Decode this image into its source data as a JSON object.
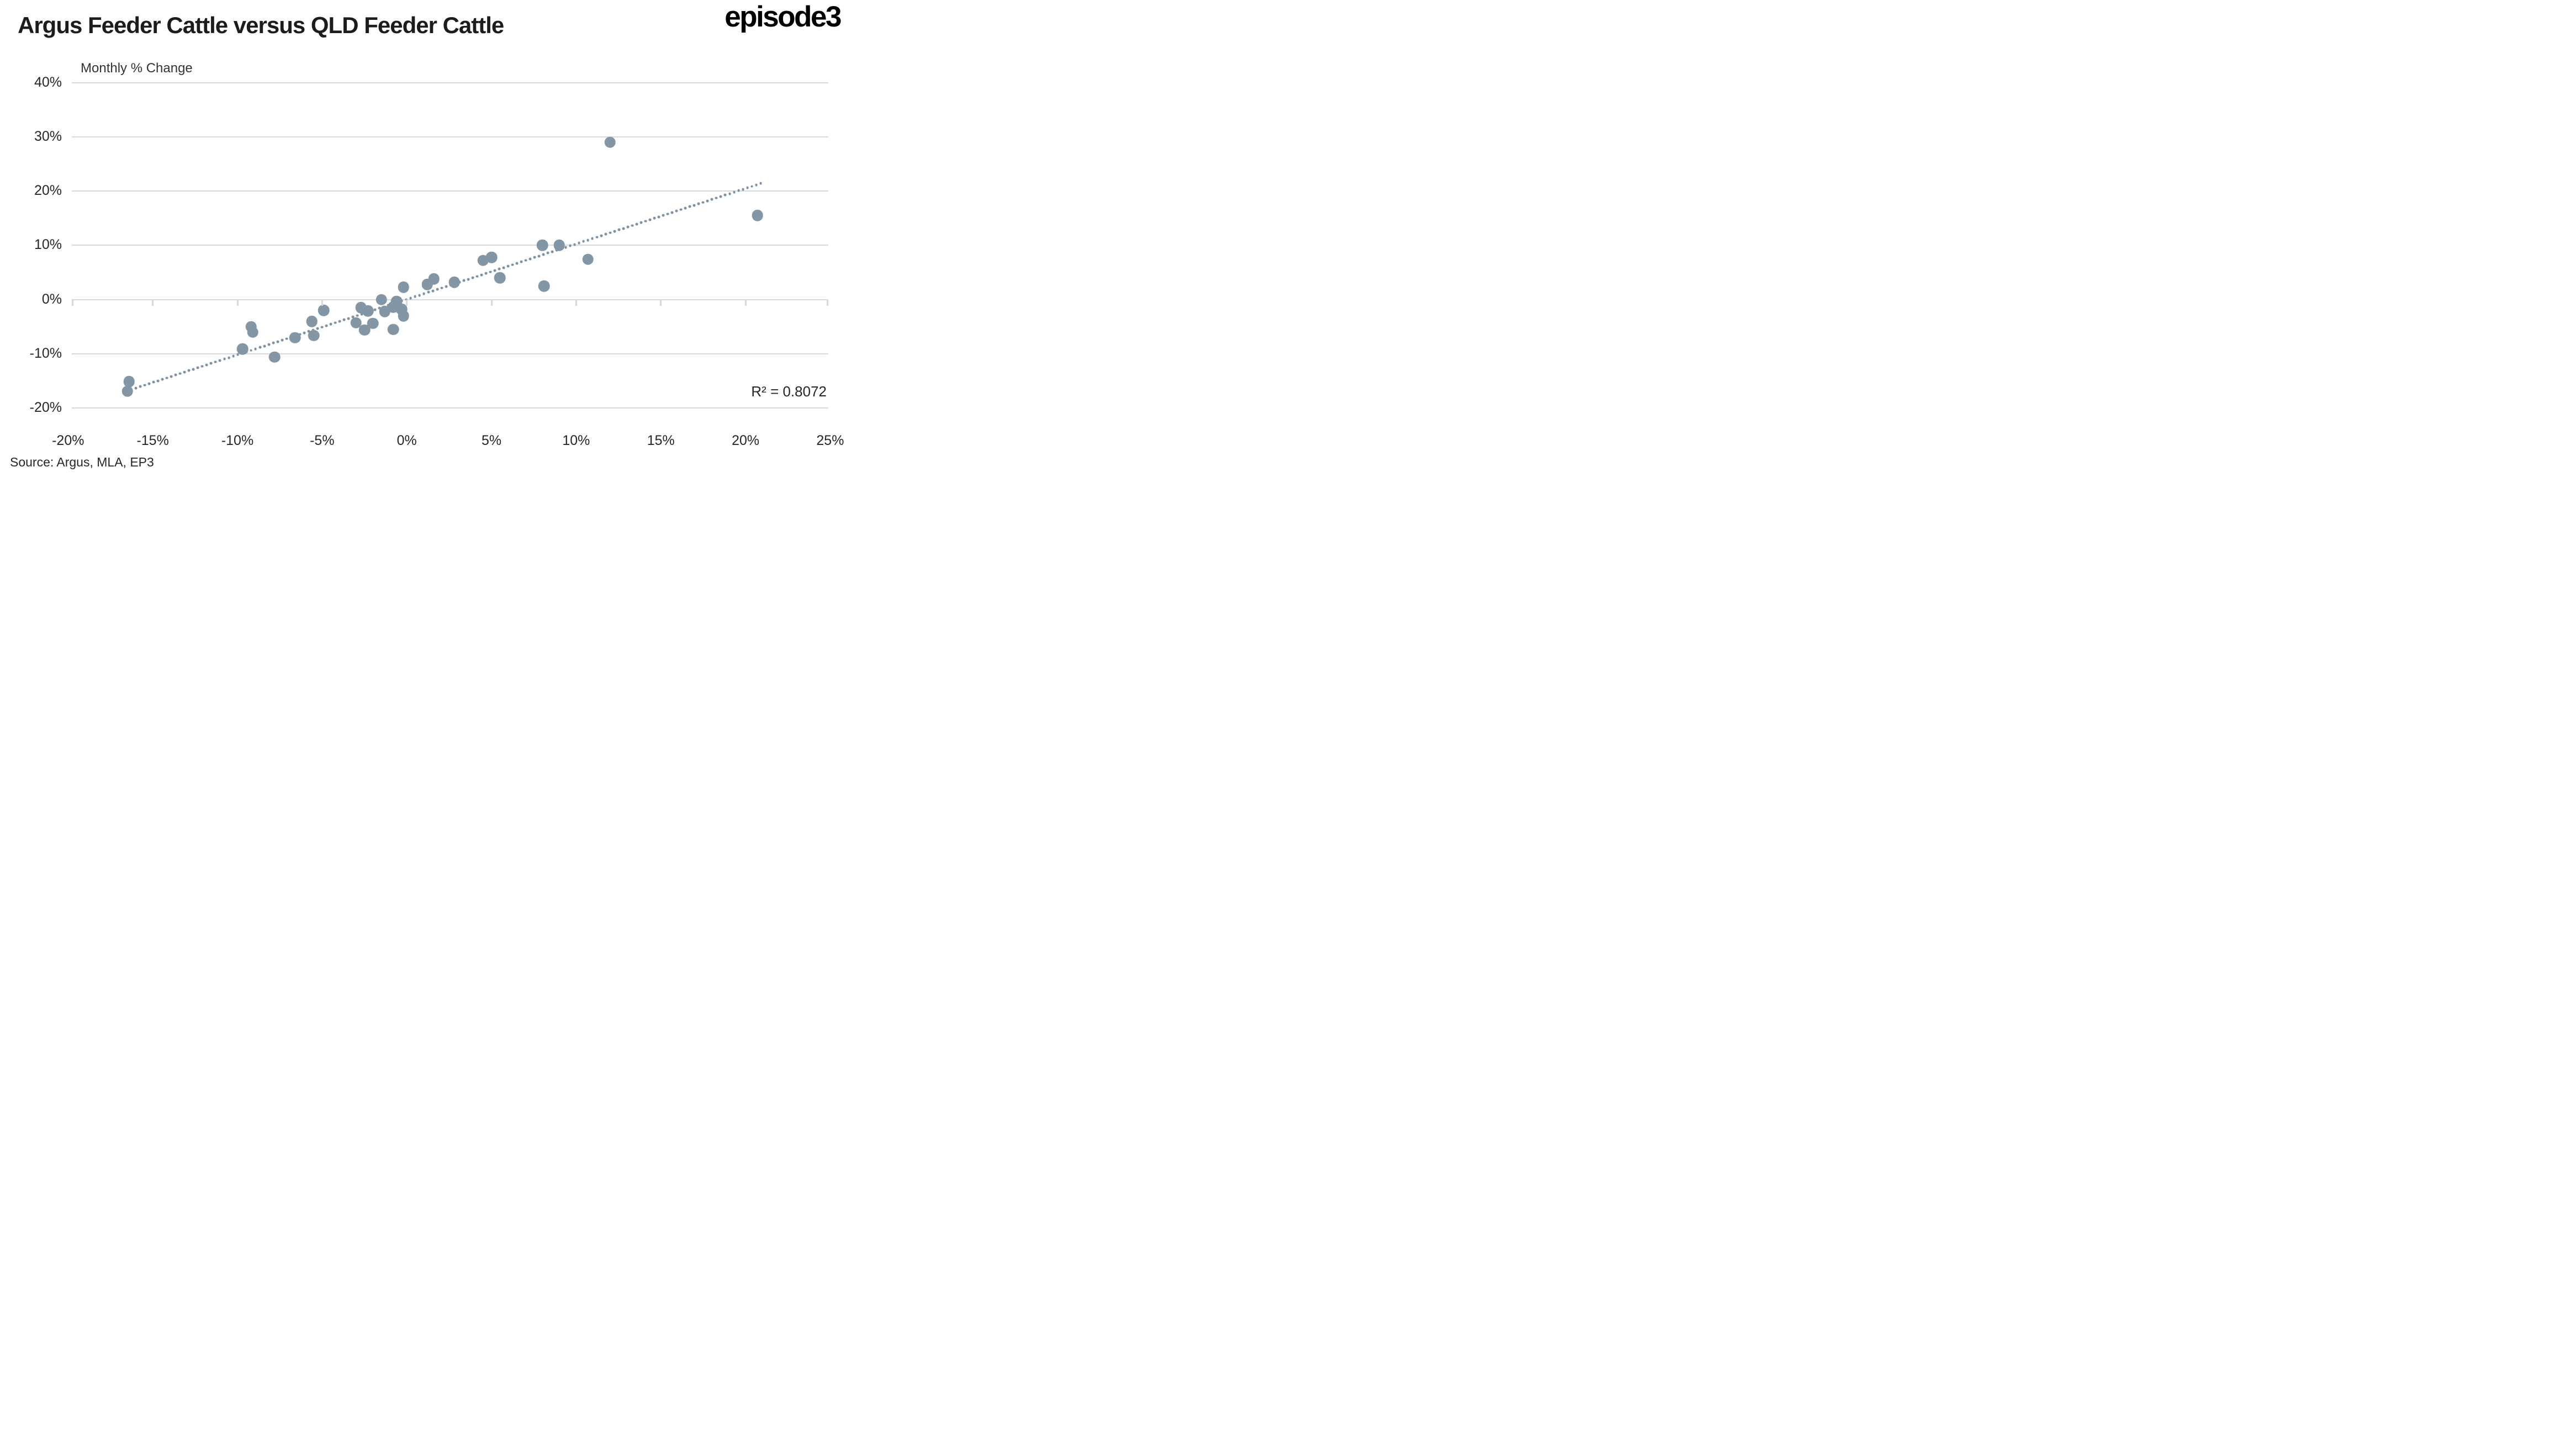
{
  "header": {
    "title": "Argus Feeder Cattle versus QLD Feeder Cattle",
    "logo_text": "episode3"
  },
  "chart": {
    "subtitle": "Monthly % Change",
    "r_squared_label": "R² = 0.8072",
    "source": "Source: Argus, MLA, EP3"
  },
  "chart_data": {
    "type": "scatter",
    "title": "Argus Feeder Cattle versus QLD Feeder Cattle",
    "subtitle": "Monthly % Change",
    "xlim": [
      -20,
      25
    ],
    "ylim": [
      -20,
      40
    ],
    "grid": "horizontal gridlines only, x ticks drawn on the 0% axis line",
    "legend": "none",
    "x_ticks": [
      {
        "v": -20,
        "label": "-20%"
      },
      {
        "v": -15,
        "label": "-15%"
      },
      {
        "v": -10,
        "label": "-10%"
      },
      {
        "v": -5,
        "label": "-5%"
      },
      {
        "v": 0,
        "label": "0%"
      },
      {
        "v": 5,
        "label": "5%"
      },
      {
        "v": 10,
        "label": "10%"
      },
      {
        "v": 15,
        "label": "15%"
      },
      {
        "v": 20,
        "label": "20%"
      },
      {
        "v": 25,
        "label": "25%"
      }
    ],
    "y_ticks": [
      {
        "v": 40,
        "label": "40%"
      },
      {
        "v": 30,
        "label": "30%"
      },
      {
        "v": 20,
        "label": "20%"
      },
      {
        "v": 10,
        "label": "10%"
      },
      {
        "v": 0,
        "label": "0%"
      },
      {
        "v": -10,
        "label": "-10%"
      },
      {
        "v": -20,
        "label": "-20%"
      }
    ],
    "points": [
      [
        -16.4,
        -15.1
      ],
      [
        -16.5,
        -16.9
      ],
      [
        -9.7,
        -9.1
      ],
      [
        -9.2,
        -5.0
      ],
      [
        -9.1,
        -6.0
      ],
      [
        -7.8,
        -10.6
      ],
      [
        -6.6,
        -7.0
      ],
      [
        -5.6,
        -4.0
      ],
      [
        -5.5,
        -6.6
      ],
      [
        -4.9,
        -2.0
      ],
      [
        -3.0,
        -4.3
      ],
      [
        -2.7,
        -1.5
      ],
      [
        -2.5,
        -5.6
      ],
      [
        -2.3,
        -2.1
      ],
      [
        -2.0,
        -4.4
      ],
      [
        -1.5,
        0.0
      ],
      [
        -1.3,
        -2.2
      ],
      [
        -0.8,
        -5.5
      ],
      [
        -0.8,
        -1.4
      ],
      [
        -0.6,
        -0.3
      ],
      [
        -0.3,
        -1.8
      ],
      [
        -0.2,
        -3.0
      ],
      [
        -0.2,
        2.3
      ],
      [
        1.2,
        2.8
      ],
      [
        1.6,
        3.8
      ],
      [
        2.8,
        3.2
      ],
      [
        4.5,
        7.2
      ],
      [
        5.0,
        7.8
      ],
      [
        5.5,
        4.0
      ],
      [
        8.0,
        10.0
      ],
      [
        8.1,
        2.5
      ],
      [
        9.0,
        10.0
      ],
      [
        10.7,
        7.4
      ],
      [
        12.0,
        29.0
      ],
      [
        20.7,
        15.5
      ]
    ],
    "trendline": {
      "style": "dotted",
      "x1": -16.0,
      "y1": -16.3,
      "x2": 20.9,
      "y2": 21.4,
      "r_squared_label": "R² = 0.8072"
    },
    "colors": {
      "point": "#8396a5",
      "trendline": "#7d93a5",
      "gridline": "#d9d9d9",
      "text": "#262626",
      "title": "#1c1c1c"
    }
  }
}
